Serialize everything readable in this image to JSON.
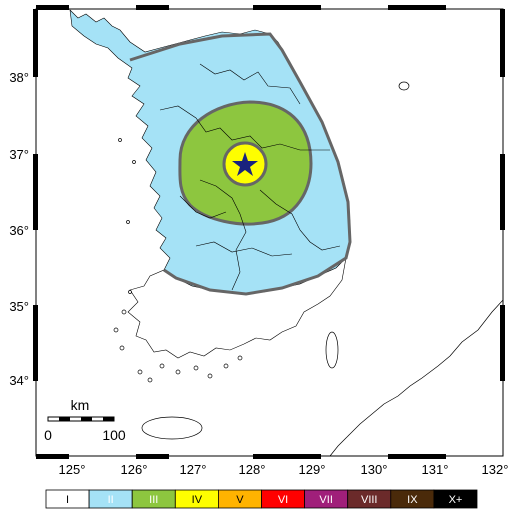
{
  "map": {
    "lon_ticks": [
      "125°",
      "126°",
      "127°",
      "128°",
      "129°",
      "130°",
      "131°",
      "132°"
    ],
    "lat_ticks": [
      "38°",
      "37°",
      "36°",
      "35°",
      "34°"
    ],
    "scale_bar": {
      "unit": "km",
      "start": "0",
      "end": "100"
    },
    "epicenter_marker": "star-icon",
    "colors": {
      "land": "#ffffff",
      "zone_II": "#a5e2f6",
      "zone_III": "#8dc63f",
      "zone_IV": "#fefe00",
      "epicenter": "#1a237e",
      "zone_outline": "#666666"
    }
  },
  "legend": {
    "items": [
      {
        "label": "I",
        "color": "#ffffff",
        "text_color": "#000000"
      },
      {
        "label": "II",
        "color": "#a5e2f6",
        "text_color": "#ffffff"
      },
      {
        "label": "III",
        "color": "#8dc63f",
        "text_color": "#ffffff"
      },
      {
        "label": "IV",
        "color": "#fefe00",
        "text_color": "#000000"
      },
      {
        "label": "V",
        "color": "#ffb300",
        "text_color": "#000000"
      },
      {
        "label": "VI",
        "color": "#ff0000",
        "text_color": "#ffffff"
      },
      {
        "label": "VII",
        "color": "#a01f7a",
        "text_color": "#ffffff"
      },
      {
        "label": "VIII",
        "color": "#6b2a2a",
        "text_color": "#ffffff"
      },
      {
        "label": "IX",
        "color": "#4a2a0a",
        "text_color": "#ffffff"
      },
      {
        "label": "X+",
        "color": "#000000",
        "text_color": "#ffffff"
      }
    ]
  }
}
